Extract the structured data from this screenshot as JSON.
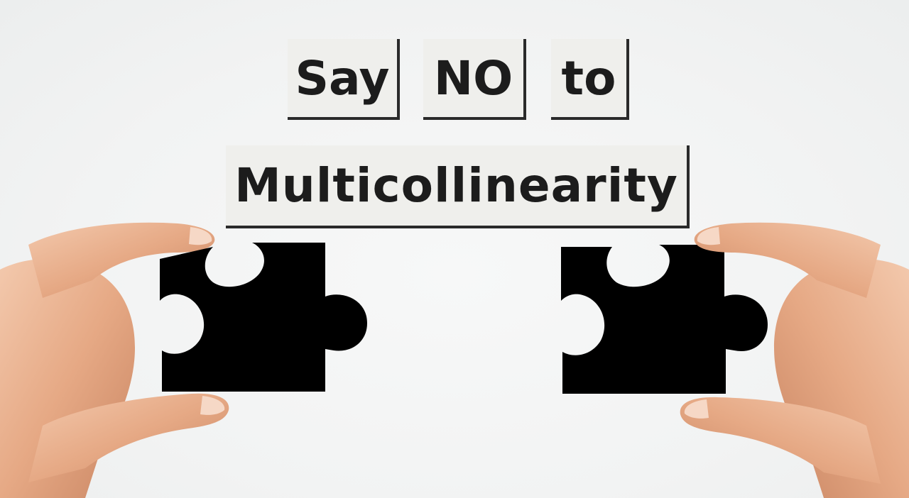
{
  "headline": {
    "words": [
      "Say",
      "NO",
      "to",
      "Multicollinearity"
    ]
  },
  "colors": {
    "background": "#f2f3f3",
    "tile_fill": "#efefec",
    "tile_shadow": "#2a2a2a",
    "text": "#1c1c1c",
    "puzzle_piece": "#000000",
    "skin": "#e9b08f"
  },
  "illustration": {
    "left_hand": "hand-holding-puzzle-piece",
    "right_hand": "hand-holding-puzzle-piece"
  }
}
